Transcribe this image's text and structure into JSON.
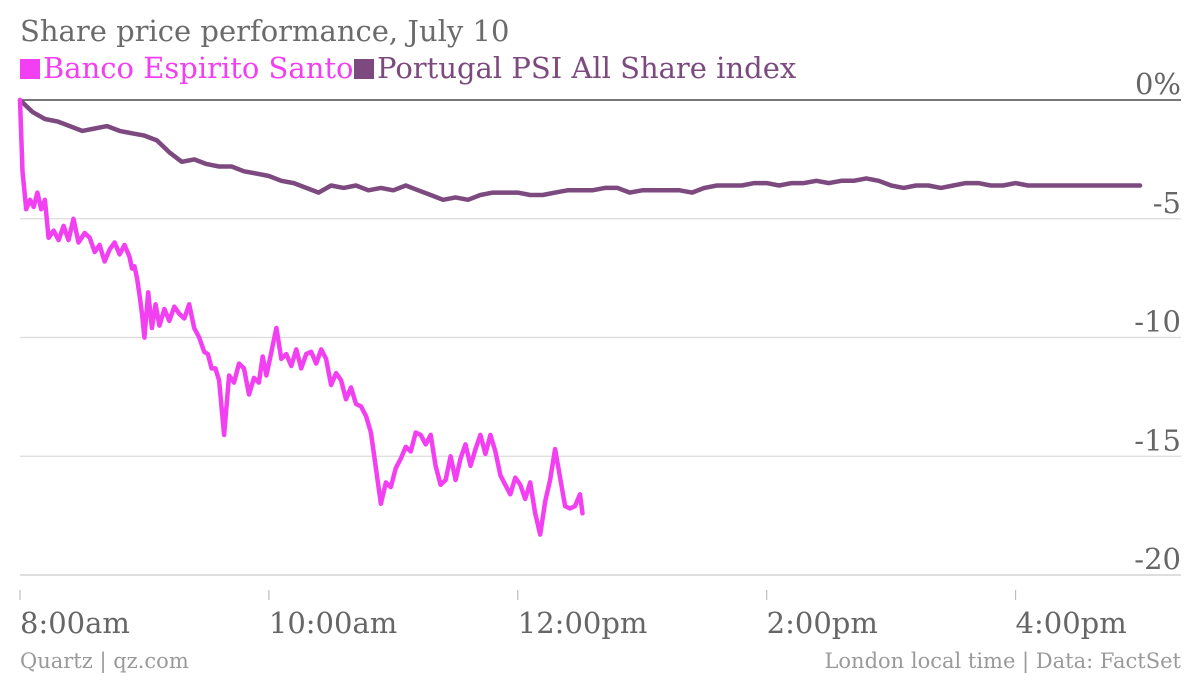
{
  "chart_data": {
    "type": "line",
    "title": "Share price performance, July 10",
    "xlabel": "",
    "ylabel": "",
    "x_unit": "hours after 8:00am",
    "xlim": [
      0,
      9.0
    ],
    "ylim": [
      -20,
      0
    ],
    "grid": true,
    "legend_position": "top-left",
    "x_ticks": [
      {
        "value": 0,
        "label": "8:00am"
      },
      {
        "value": 2,
        "label": "10:00am"
      },
      {
        "value": 4,
        "label": "12:00pm"
      },
      {
        "value": 6,
        "label": "2:00pm"
      },
      {
        "value": 8,
        "label": "4:00pm"
      }
    ],
    "y_ticks": [
      {
        "value": 0,
        "label": "0%"
      },
      {
        "value": -5,
        "label": "-5"
      },
      {
        "value": -10,
        "label": "-10"
      },
      {
        "value": -15,
        "label": "-15"
      },
      {
        "value": -20,
        "label": "-20"
      }
    ],
    "series": [
      {
        "name": "Banco Espirito Santo",
        "color": "#f33ff2",
        "x": [
          0,
          0.02,
          0.05,
          0.08,
          0.11,
          0.14,
          0.17,
          0.2,
          0.23,
          0.27,
          0.31,
          0.35,
          0.39,
          0.43,
          0.47,
          0.52,
          0.56,
          0.6,
          0.64,
          0.68,
          0.72,
          0.76,
          0.8,
          0.84,
          0.88,
          0.9,
          0.92,
          0.94,
          0.96,
          0.98,
          1.0,
          1.03,
          1.06,
          1.09,
          1.12,
          1.16,
          1.2,
          1.24,
          1.28,
          1.32,
          1.36,
          1.4,
          1.44,
          1.48,
          1.51,
          1.54,
          1.57,
          1.6,
          1.64,
          1.68,
          1.72,
          1.76,
          1.8,
          1.84,
          1.88,
          1.92,
          1.95,
          1.98,
          2.02,
          2.06,
          2.1,
          2.14,
          2.18,
          2.22,
          2.26,
          2.3,
          2.34,
          2.38,
          2.42,
          2.46,
          2.5,
          2.54,
          2.58,
          2.62,
          2.66,
          2.7,
          2.74,
          2.78,
          2.82,
          2.86,
          2.9,
          2.94,
          2.98,
          3.02,
          3.06,
          3.1,
          3.14,
          3.18,
          3.22,
          3.26,
          3.3,
          3.34,
          3.38,
          3.42,
          3.46,
          3.5,
          3.54,
          3.58,
          3.62,
          3.66,
          3.7,
          3.74,
          3.78,
          3.82,
          3.86,
          3.9,
          3.94,
          3.98,
          4.02,
          4.06,
          4.1,
          4.14,
          4.18,
          4.22,
          4.26,
          4.3,
          4.34,
          4.38,
          4.42,
          4.46,
          4.5,
          4.52
        ],
        "values": [
          0,
          -3.0,
          -4.6,
          -4.2,
          -4.5,
          -3.9,
          -4.6,
          -4.2,
          -5.8,
          -5.5,
          -5.9,
          -5.3,
          -5.9,
          -5.0,
          -6.0,
          -5.6,
          -5.8,
          -6.4,
          -6.1,
          -6.8,
          -6.3,
          -6.0,
          -6.5,
          -6.1,
          -6.6,
          -7.1,
          -7.0,
          -7.5,
          -8.2,
          -9.0,
          -10.0,
          -8.1,
          -9.6,
          -8.6,
          -9.5,
          -8.8,
          -9.3,
          -8.7,
          -9.0,
          -9.2,
          -8.6,
          -9.6,
          -10.0,
          -10.6,
          -10.7,
          -11.3,
          -11.3,
          -11.8,
          -14.1,
          -11.6,
          -11.9,
          -11.1,
          -11.3,
          -12.4,
          -11.7,
          -11.9,
          -10.8,
          -11.6,
          -10.6,
          -9.6,
          -10.9,
          -10.7,
          -11.2,
          -10.5,
          -11.3,
          -10.7,
          -10.6,
          -11.1,
          -10.5,
          -10.9,
          -12.0,
          -11.5,
          -11.8,
          -12.6,
          -12.1,
          -12.8,
          -12.9,
          -13.3,
          -14.0,
          -15.5,
          -17.0,
          -16.1,
          -16.3,
          -15.5,
          -15.1,
          -14.6,
          -14.8,
          -14.0,
          -14.1,
          -14.5,
          -14.1,
          -15.4,
          -16.2,
          -16.0,
          -15.0,
          -16.0,
          -15.1,
          -14.5,
          -15.4,
          -14.7,
          -14.1,
          -14.9,
          -14.1,
          -14.8,
          -15.8,
          -16.2,
          -16.6,
          -15.9,
          -16.2,
          -16.8,
          -16.1,
          -17.4,
          -18.3,
          -16.9,
          -16.0,
          -14.7,
          -15.9,
          -17.1,
          -17.2,
          -17.1,
          -16.6,
          -17.4
        ]
      },
      {
        "name": "Portugal PSI All Share index",
        "color": "#7c4a7f",
        "x": [
          0,
          0.1,
          0.2,
          0.3,
          0.4,
          0.5,
          0.6,
          0.7,
          0.8,
          0.9,
          1.0,
          1.1,
          1.2,
          1.3,
          1.4,
          1.5,
          1.6,
          1.7,
          1.8,
          1.9,
          2.0,
          2.1,
          2.2,
          2.3,
          2.4,
          2.5,
          2.6,
          2.7,
          2.8,
          2.9,
          3.0,
          3.1,
          3.2,
          3.3,
          3.4,
          3.5,
          3.6,
          3.7,
          3.8,
          3.9,
          4.0,
          4.1,
          4.2,
          4.3,
          4.4,
          4.5,
          4.6,
          4.7,
          4.8,
          4.9,
          5.0,
          5.1,
          5.2,
          5.3,
          5.4,
          5.5,
          5.6,
          5.7,
          5.8,
          5.9,
          6.0,
          6.1,
          6.2,
          6.3,
          6.4,
          6.5,
          6.6,
          6.7,
          6.8,
          6.9,
          7.0,
          7.1,
          7.2,
          7.3,
          7.4,
          7.5,
          7.6,
          7.7,
          7.8,
          7.9,
          8.0,
          8.1,
          8.2,
          8.3,
          8.4,
          8.5,
          8.6,
          8.7,
          8.8,
          8.9,
          9.0
        ],
        "values": [
          0,
          -0.5,
          -0.8,
          -0.9,
          -1.1,
          -1.3,
          -1.2,
          -1.1,
          -1.3,
          -1.4,
          -1.5,
          -1.7,
          -2.2,
          -2.6,
          -2.5,
          -2.7,
          -2.8,
          -2.8,
          -3.0,
          -3.1,
          -3.2,
          -3.4,
          -3.5,
          -3.7,
          -3.9,
          -3.6,
          -3.7,
          -3.6,
          -3.8,
          -3.7,
          -3.8,
          -3.6,
          -3.8,
          -4.0,
          -4.2,
          -4.1,
          -4.2,
          -4.0,
          -3.9,
          -3.9,
          -3.9,
          -4.0,
          -4.0,
          -3.9,
          -3.8,
          -3.8,
          -3.8,
          -3.7,
          -3.7,
          -3.9,
          -3.8,
          -3.8,
          -3.8,
          -3.8,
          -3.9,
          -3.7,
          -3.6,
          -3.6,
          -3.6,
          -3.5,
          -3.5,
          -3.6,
          -3.5,
          -3.5,
          -3.4,
          -3.5,
          -3.4,
          -3.4,
          -3.3,
          -3.4,
          -3.6,
          -3.7,
          -3.6,
          -3.6,
          -3.7,
          -3.6,
          -3.5,
          -3.5,
          -3.6,
          -3.6,
          -3.5,
          -3.6,
          -3.6,
          -3.6,
          -3.6,
          -3.6,
          -3.6,
          -3.6,
          -3.6,
          -3.6,
          -3.6
        ]
      }
    ],
    "source_left": "Quartz | qz.com",
    "source_right": "London local time | Data: FactSet"
  }
}
